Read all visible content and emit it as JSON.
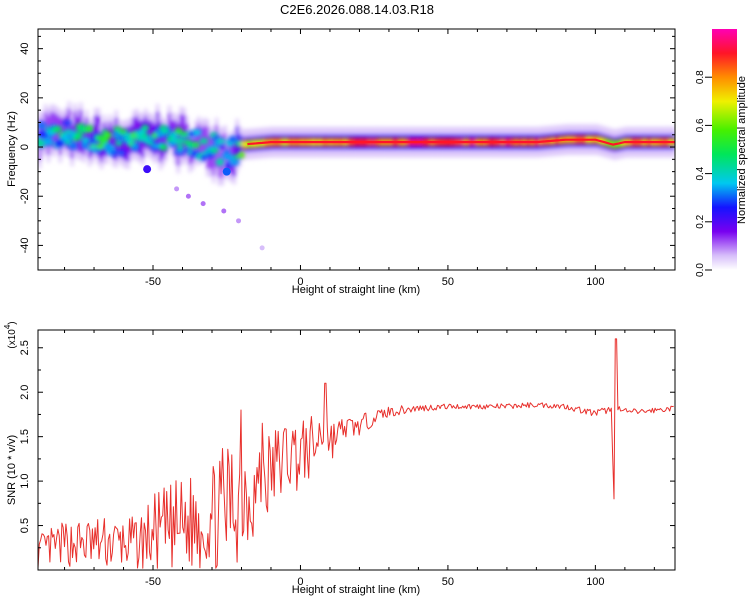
{
  "figure": {
    "title": "C2E6.2026.088.14.03.R18"
  },
  "chart_data": [
    {
      "type": "heatmap",
      "panel": "top",
      "xlabel": "Height of straight line (km)",
      "ylabel": "Frequency (Hz)",
      "xlim": [
        -89,
        127
      ],
      "ylim": [
        -50,
        48
      ],
      "xticks": [
        -50,
        0,
        50,
        100
      ],
      "yticks": [
        -40,
        -20,
        0,
        20,
        40
      ],
      "colorbar": {
        "label": "Normalized spectral amplitude",
        "range": [
          0,
          1
        ],
        "ticks": [
          "0.0",
          "0.2",
          "0.4",
          "0.6",
          "0.8"
        ],
        "tick_values": [
          0.0,
          0.2,
          0.4,
          0.6,
          0.8
        ]
      },
      "ridge": {
        "x": [
          -88,
          -80,
          -70,
          -60,
          -50,
          -45,
          -40,
          -30,
          -25,
          -20,
          -10,
          0,
          10,
          20,
          40,
          60,
          80,
          90,
          100,
          106,
          110,
          127
        ],
        "freq": [
          6,
          5,
          3,
          2,
          4,
          5,
          2,
          0,
          -3,
          1,
          2,
          2,
          2,
          2,
          2,
          2,
          2,
          3,
          3,
          1,
          2,
          2
        ],
        "amplitude": [
          0.35,
          0.4,
          0.45,
          0.45,
          0.45,
          0.42,
          0.4,
          0.35,
          0.3,
          0.7,
          0.8,
          0.8,
          0.85,
          0.9,
          0.92,
          0.92,
          0.9,
          0.82,
          0.82,
          0.6,
          0.85,
          0.82
        ]
      },
      "spots": [
        {
          "x": -52,
          "freq": -9,
          "amplitude": 0.22
        },
        {
          "x": -25,
          "freq": -10,
          "amplitude": 0.3
        },
        {
          "x": -42,
          "freq": -17,
          "amplitude": 0.08
        },
        {
          "x": -38,
          "freq": -20,
          "amplitude": 0.1
        },
        {
          "x": -33,
          "freq": -23,
          "amplitude": 0.1
        },
        {
          "x": -26,
          "freq": -26,
          "amplitude": 0.1
        },
        {
          "x": -21,
          "freq": -30,
          "amplitude": 0.08
        },
        {
          "x": -13,
          "freq": -41,
          "amplitude": 0.06
        }
      ]
    },
    {
      "type": "line",
      "panel": "bottom",
      "xlabel": "Height of straight line (km)",
      "ylabel": "SNR (10 * v/v)",
      "yscale_label": "(x10^4)",
      "yscale_base": "(x10",
      "yscale_exp": "4",
      "yscale_close": ")",
      "xlim": [
        -89,
        127
      ],
      "ylim": [
        0,
        2.7
      ],
      "xticks": [
        -50,
        0,
        50,
        100
      ],
      "yticks": [
        0.5,
        1.0,
        1.5,
        2.0,
        2.5
      ],
      "series": [
        {
          "name": "SNR",
          "color": "#e8302c",
          "x": [
            -89,
            -80,
            -70,
            -60,
            -55,
            -50,
            -40,
            -30,
            -22,
            -20,
            -15,
            -10,
            -5,
            0,
            5,
            8,
            10,
            15,
            20,
            25,
            30,
            35,
            40,
            50,
            60,
            70,
            80,
            90,
            100,
            104,
            106,
            107,
            110,
            115,
            127
          ],
          "values": [
            0.2,
            0.3,
            0.3,
            0.3,
            0.3,
            0.4,
            0.5,
            0.6,
            0.8,
            0.9,
            0.9,
            1.1,
            1.3,
            1.3,
            1.4,
            1.6,
            1.45,
            1.6,
            1.62,
            1.72,
            1.78,
            1.8,
            1.82,
            1.84,
            1.84,
            1.84,
            1.86,
            1.84,
            1.76,
            1.8,
            1.8,
            1.82,
            1.78,
            1.78,
            1.82
          ],
          "noise": [
            0.2,
            0.25,
            0.3,
            0.3,
            0.3,
            0.45,
            0.55,
            0.6,
            0.8,
            0.75,
            0.55,
            0.5,
            0.45,
            0.4,
            0.35,
            0.35,
            0.25,
            0.12,
            0.12,
            0.08,
            0.06,
            0.05,
            0.04,
            0.03,
            0.03,
            0.03,
            0.03,
            0.03,
            0.04,
            0.04,
            0.04,
            0.04,
            0.04,
            0.03,
            0.03
          ]
        }
      ],
      "peaks": [
        {
          "x": -20,
          "value": 1.8
        },
        {
          "x": -13,
          "value": 1.65
        },
        {
          "x": 8.5,
          "value": 2.1
        },
        {
          "x": 106,
          "value": 1.3
        },
        {
          "x": 106.5,
          "value": 0.8
        },
        {
          "x": 107,
          "value": 2.6
        }
      ]
    }
  ]
}
